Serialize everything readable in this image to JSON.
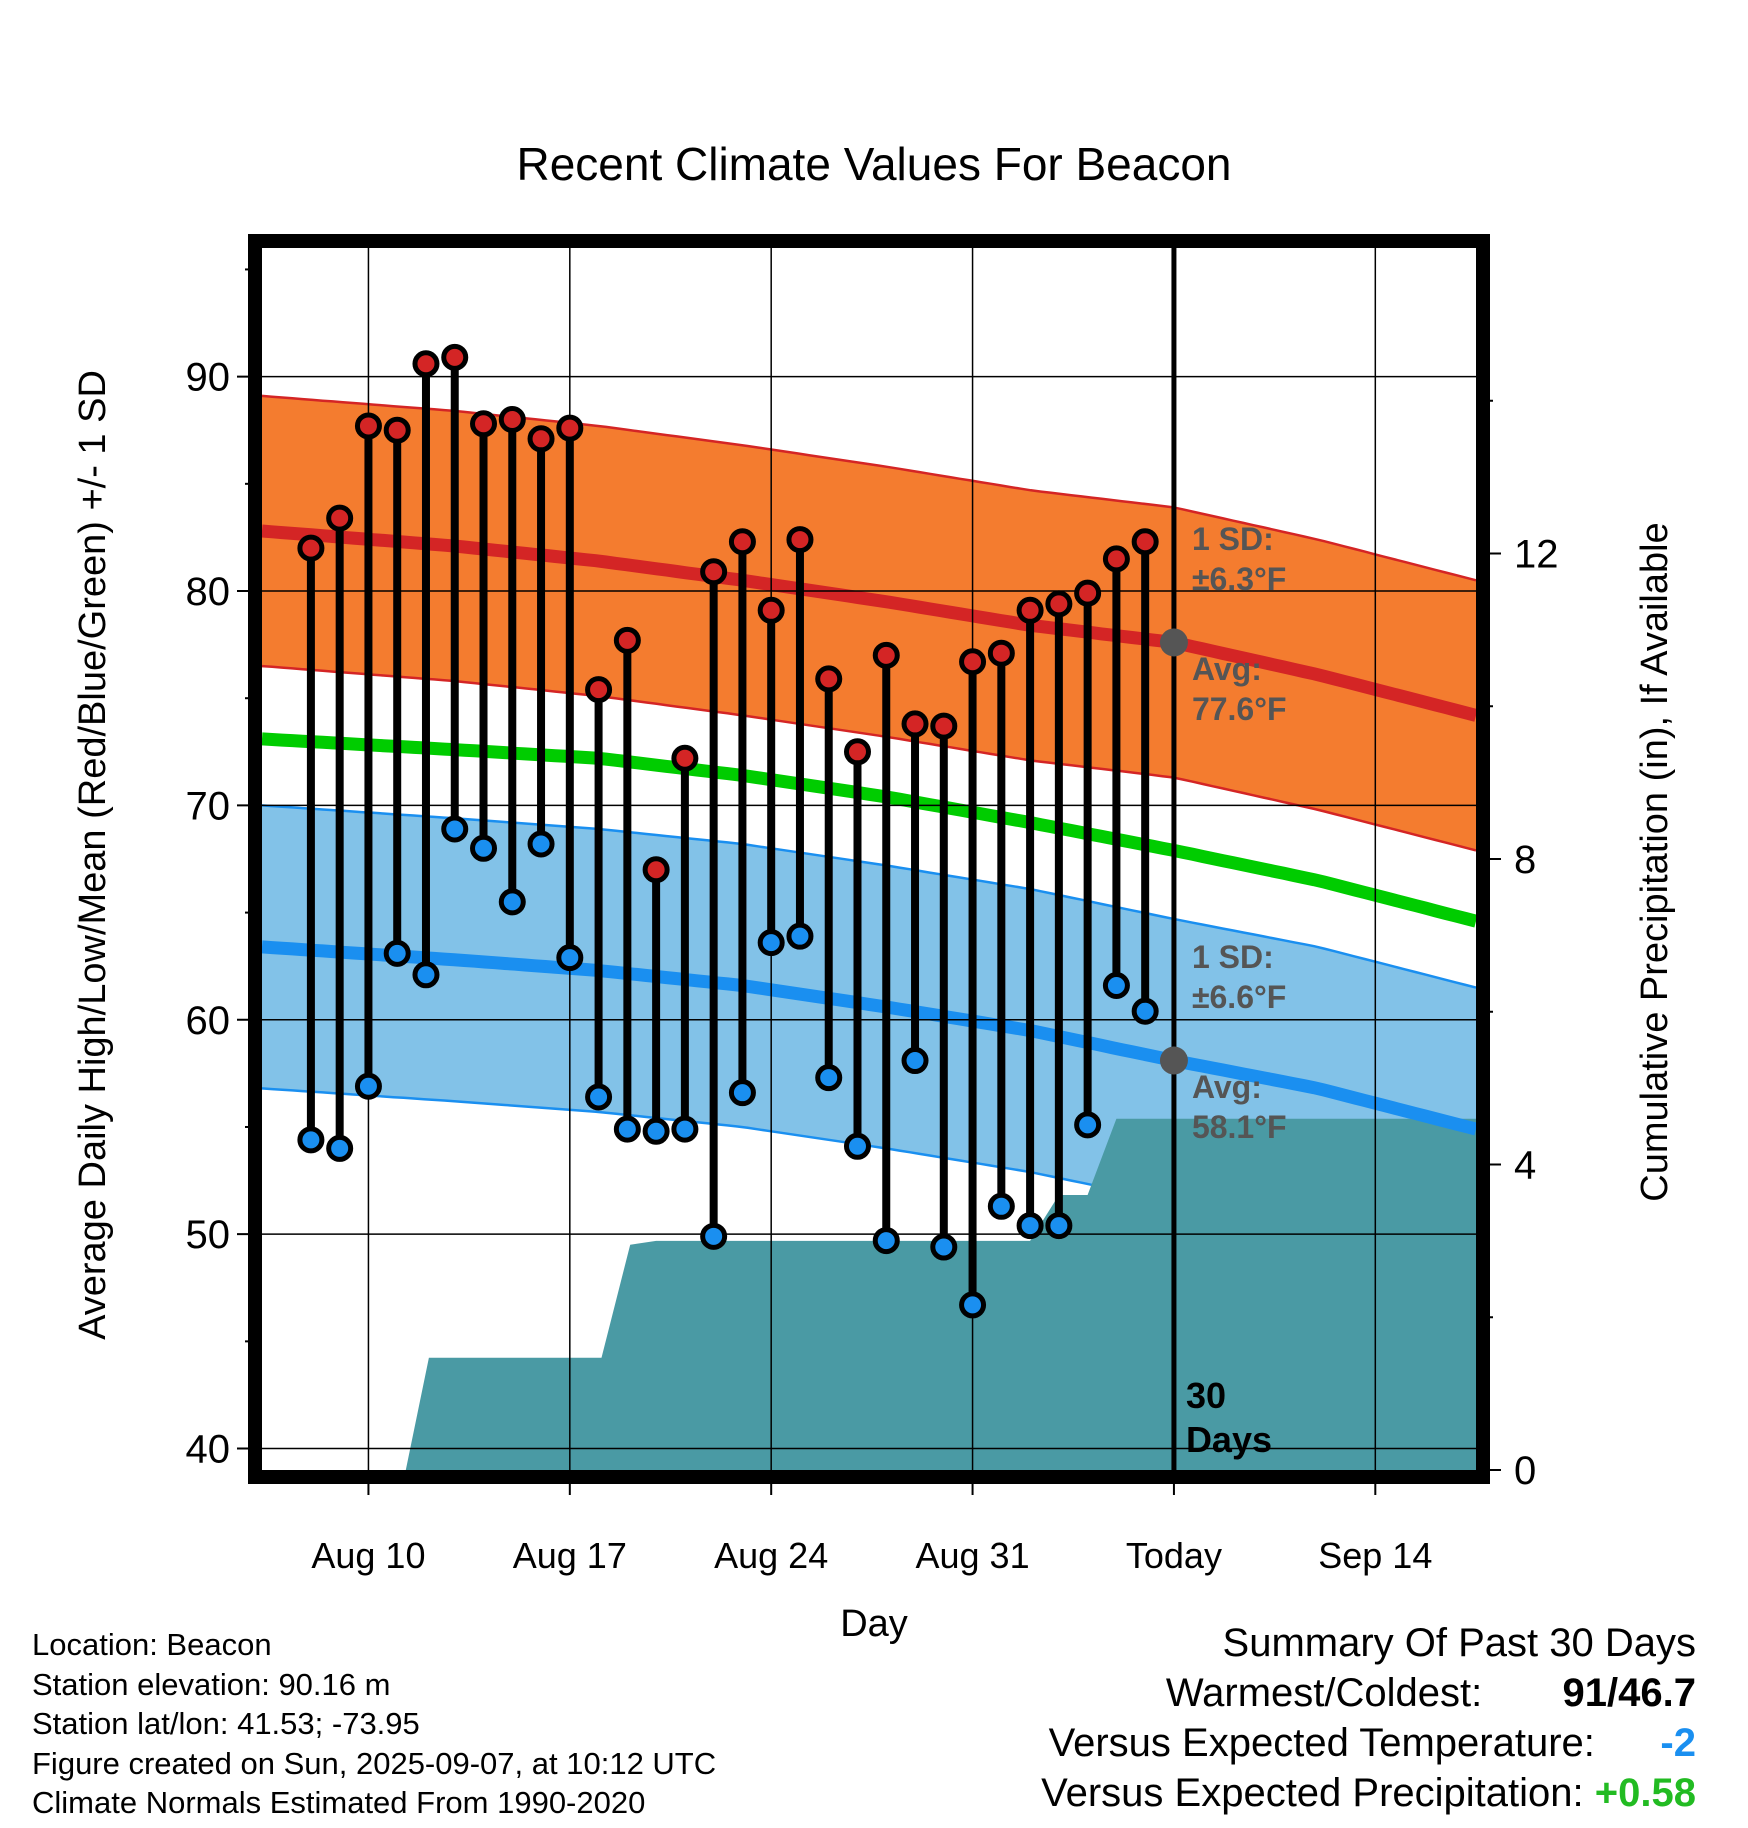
{
  "chart_data": {
    "type": "line",
    "title": "Recent Climate Values For Beacon",
    "xlabel": "Day",
    "ylabel": "Average Daily High/Low/Mean (Red/Blue/Green) +/- 1 SD",
    "y2label": "Cumulative Precipitation (in), If Available",
    "ylim": [
      39,
      96
    ],
    "y2lim": [
      0,
      16
    ],
    "xlim": [
      -1.7,
      40.5
    ],
    "yticks": [
      40,
      50,
      60,
      70,
      80,
      90
    ],
    "y2ticks": [
      0,
      4,
      8,
      12
    ],
    "xticks": [
      {
        "x": 2,
        "label": "Aug 10"
      },
      {
        "x": 9,
        "label": "Aug 17"
      },
      {
        "x": 16,
        "label": "Aug 24"
      },
      {
        "x": 23,
        "label": "Aug 31"
      },
      {
        "x": 30,
        "label": "Today"
      },
      {
        "x": 37,
        "label": "Sep 14"
      }
    ],
    "grid": true,
    "today_x": 30,
    "today_label_lines": [
      "30",
      "Days"
    ],
    "colors": {
      "high_band": "#f47c2f",
      "high_line": "#d42525",
      "low_band": "#82c2e8",
      "low_line": "#1a8ff0",
      "mean_line": "#00cc00",
      "precip": "#4a9aa4",
      "high_dot": "#d42525",
      "low_dot": "#1a8ff0",
      "today_dot": "#555555",
      "annotation": "#555555"
    },
    "normals": {
      "x": [
        -1.7,
        5,
        10,
        15,
        20,
        25,
        30,
        35,
        40.5
      ],
      "high_avg": [
        82.8,
        82.1,
        81.4,
        80.5,
        79.5,
        78.4,
        77.6,
        76.1,
        74.2
      ],
      "high_sd": 6.3,
      "low_avg": [
        63.4,
        62.8,
        62.3,
        61.6,
        60.6,
        59.5,
        58.1,
        56.8,
        54.9
      ],
      "low_sd": 6.6,
      "mean_avg": [
        73.1,
        72.6,
        72.2,
        71.4,
        70.4,
        69.2,
        67.9,
        66.5,
        64.6
      ]
    },
    "today_markers": {
      "high": 77.6,
      "low": 58.1
    },
    "annotations": {
      "high_sd": [
        "1 SD:",
        "±6.3°F"
      ],
      "high_avg": [
        "Avg:",
        "77.6°F"
      ],
      "low_sd": [
        "1 SD:",
        "±6.6°F"
      ],
      "low_avg": [
        "Avg:",
        "58.1°F"
      ]
    },
    "series": [
      {
        "name": "Daily High",
        "x": [
          0,
          1,
          2,
          3,
          4,
          5,
          6,
          7,
          8,
          9,
          10,
          11,
          12,
          13,
          14,
          15,
          16,
          17,
          18,
          19,
          20,
          21,
          22,
          23,
          24,
          25,
          26,
          27,
          28,
          29
        ],
        "values": [
          82,
          83.4,
          87.7,
          87.5,
          90.6,
          90.9,
          87.8,
          88,
          87.1,
          87.6,
          75.4,
          77.7,
          67,
          72.2,
          80.9,
          82.3,
          79.1,
          82.4,
          75.9,
          72.5,
          77,
          73.8,
          73.7,
          76.7,
          77.1,
          79.1,
          79.4,
          79.9,
          81.5,
          82.3
        ]
      },
      {
        "name": "Daily Low",
        "x": [
          0,
          1,
          2,
          3,
          4,
          5,
          6,
          7,
          8,
          9,
          10,
          11,
          12,
          13,
          14,
          15,
          16,
          17,
          18,
          19,
          20,
          21,
          22,
          23,
          24,
          25,
          26,
          27,
          28,
          29
        ],
        "values": [
          54.4,
          54,
          56.9,
          63.1,
          62.1,
          68.9,
          68,
          65.5,
          68.2,
          62.9,
          56.4,
          54.9,
          54.8,
          54.9,
          49.9,
          56.6,
          63.6,
          63.9,
          57.3,
          54.1,
          49.7,
          58.1,
          49.4,
          46.7,
          51.3,
          50.4,
          50.4,
          55.1,
          61.6,
          60.4
        ]
      },
      {
        "name": "Cumulative Precipitation",
        "x": [
          3.3,
          4.1,
          10.1,
          11.1,
          12,
          25,
          26,
          27,
          28,
          40.5
        ],
        "values": [
          0,
          1.47,
          1.47,
          2.95,
          3,
          3,
          3.6,
          3.6,
          4.6,
          4.6
        ]
      }
    ]
  },
  "info": {
    "location": "Location: Beacon",
    "elevation": "Station elevation: 90.16 m",
    "latlon": "Station lat/lon: 41.53; -73.95",
    "created": "Figure created on Sun, 2025-09-07, at 10:12 UTC",
    "normals": "Climate Normals Estimated From 1990-2020"
  },
  "summary": {
    "title": "Summary Of Past 30 Days",
    "warm_cold_label": "Warmest/Coldest:",
    "warm": "91",
    "cold": "46.7",
    "temp_label": "Versus Expected Temperature:",
    "temp_value": "-2",
    "temp_color": "#1a8ff0",
    "precip_label": "Versus Expected Precipitation:",
    "precip_value": "+0.58",
    "precip_color": "#22bb22"
  }
}
